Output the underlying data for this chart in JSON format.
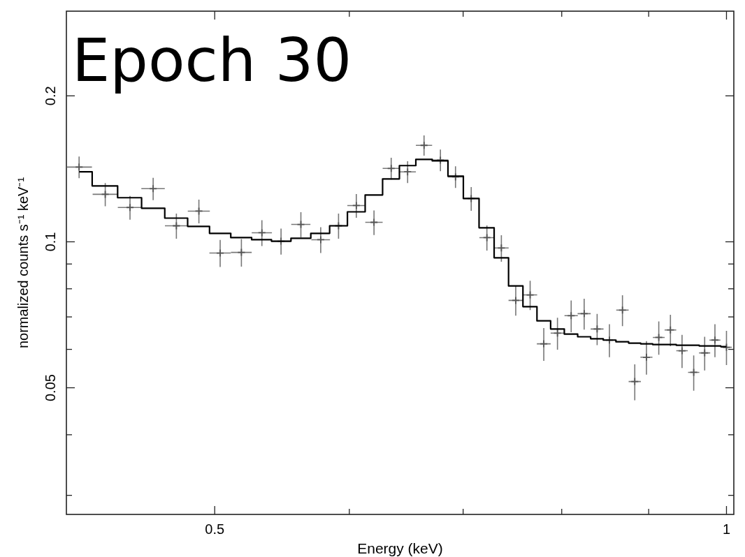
{
  "chart_data": {
    "type": "scatter",
    "title": "Epoch 30",
    "xlabel": "Energy (keV)",
    "ylabel": "normalized counts s⁻¹ keV⁻¹",
    "log": "xy",
    "xlim": [
      0.409,
      1.01
    ],
    "ylim": [
      0.0274,
      0.299
    ],
    "xticks": [
      0.5,
      {
        "value": 0.6,
        "label": null
      },
      {
        "value": 0.7,
        "label": null
      },
      {
        "value": 0.8,
        "label": null
      },
      {
        "value": 0.9,
        "label": null
      },
      1
    ],
    "yticks": [
      {
        "value": 0.03,
        "label": null
      },
      {
        "value": 0.04,
        "label": null
      },
      0.05,
      {
        "value": 0.06,
        "label": null
      },
      {
        "value": 0.07,
        "label": null
      },
      {
        "value": 0.08,
        "label": null
      },
      {
        "value": 0.09,
        "label": null
      },
      0.1,
      0.2
    ],
    "x": [
      0.4161,
      0.4311,
      0.4458,
      0.46,
      0.4747,
      0.4894,
      0.5037,
      0.5184,
      0.533,
      0.547,
      0.5619,
      0.5772,
      0.5913,
      0.6057,
      0.6204,
      0.635,
      0.6493,
      0.6639,
      0.6788,
      0.6928,
      0.7077,
      0.7229,
      0.7372,
      0.7517,
      0.7665,
      0.7808,
      0.7954,
      0.8103,
      0.8247,
      0.8393,
      0.8534,
      0.8686,
      0.8832,
      0.8973,
      0.9124,
      0.9269,
      0.9416,
      0.9566,
      0.9709,
      0.9845,
      1.0
    ],
    "series": [
      {
        "color": "#555555",
        "marker": "cross",
        "values": [
          0.1426,
          0.1253,
          0.1177,
          0.1287,
          0.1079,
          0.1157,
          0.0948,
          0.0951,
          0.1044,
          0.1003,
          0.1086,
          0.101,
          0.1079,
          0.1188,
          0.1097,
          0.1417,
          0.1394,
          0.1581,
          0.1474,
          0.1361,
          0.1228,
          0.102,
          0.0971,
          0.0757,
          0.0777,
          0.0616,
          0.0648,
          0.0704,
          0.0711,
          0.0661,
          0.0627,
          0.0723,
          0.0515,
          0.0578,
          0.0635,
          0.0658,
          0.0596,
          0.0538,
          0.059,
          0.0627,
          0.0606
        ],
        "errors": [
          0.0073,
          0.0069,
          0.0066,
          0.0068,
          0.0064,
          0.0065,
          0.0061,
          0.0062,
          0.0064,
          0.0062,
          0.0065,
          0.0062,
          0.0064,
          0.0067,
          0.0064,
          0.0073,
          0.0072,
          0.0076,
          0.0076,
          0.007,
          0.0069,
          0.0061,
          0.0061,
          0.0053,
          0.0054,
          0.0048,
          0.0049,
          0.0053,
          0.0052,
          0.0049,
          0.0049,
          0.0053,
          0.0044,
          0.0046,
          0.005,
          0.0049,
          0.0047,
          0.0045,
          0.0047,
          0.0049,
          0.0049
        ],
        "xerrors": [
          0.0073,
          0.0073,
          0.0073,
          0.0073,
          0.0073,
          0.0073,
          0.0073,
          0.0073,
          0.0073,
          0.0073,
          0.0073,
          0.0073,
          0.0073,
          0.0073,
          0.0073,
          0.0073,
          0.0073,
          0.0073,
          0.0073,
          0.0073,
          0.0073,
          0.0073,
          0.0073,
          0.0073,
          0.0073,
          0.0073,
          0.0073,
          0.0073,
          0.0073,
          0.0073,
          0.0073,
          0.0073,
          0.0073,
          0.0073,
          0.0073,
          0.0073,
          0.0073,
          0.0073,
          0.0073,
          0.0073,
          0.0073
        ]
      },
      {
        "type": "step",
        "color": "#000000",
        "values": [
          0.1394,
          0.1304,
          0.1233,
          0.1173,
          0.1119,
          0.1076,
          0.1041,
          0.102,
          0.101,
          0.1003,
          0.1017,
          0.1041,
          0.1079,
          0.1153,
          0.1249,
          0.1348,
          0.1436,
          0.1479,
          0.1469,
          0.1366,
          0.1228,
          0.1069,
          0.0927,
          0.0811,
          0.0735,
          0.0687,
          0.0661,
          0.0645,
          0.0637,
          0.0631,
          0.0627,
          0.0622,
          0.0618,
          0.0616,
          0.0614,
          0.0614,
          0.0612,
          0.0612,
          0.061,
          0.061,
          0.0608
        ]
      }
    ]
  }
}
